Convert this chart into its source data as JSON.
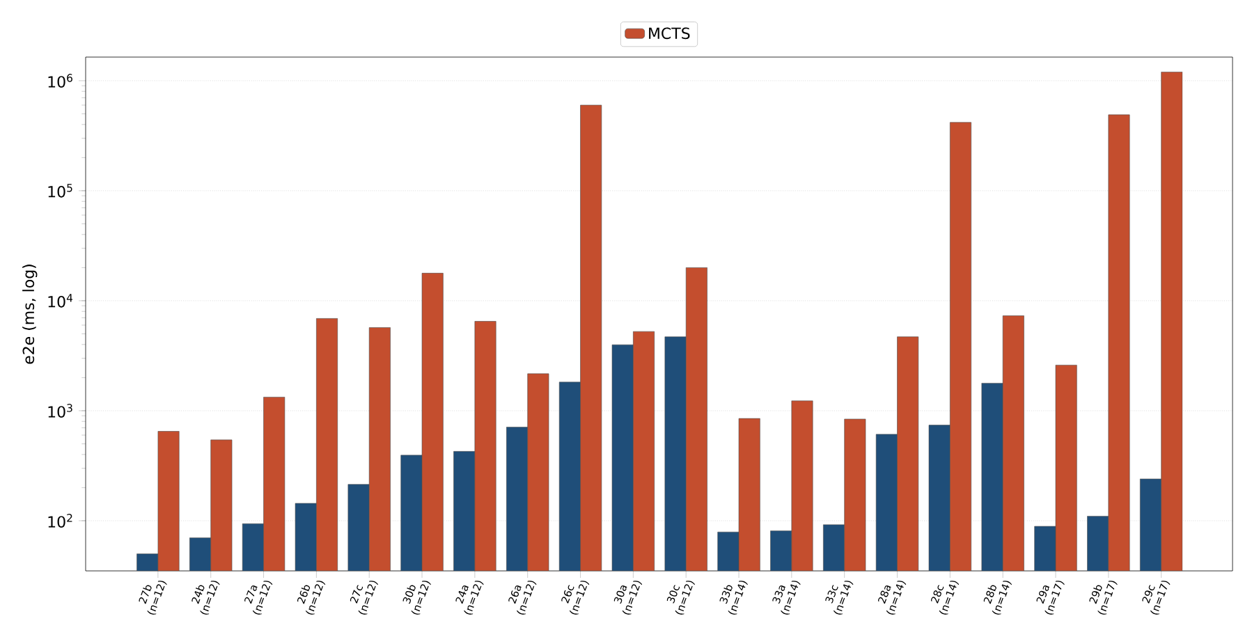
{
  "chart_data": {
    "type": "bar",
    "ylabel": "e2e (ms, log)",
    "log": "y",
    "grid": "y",
    "legend": "top",
    "categories": [
      "27b (n=12)",
      "24b (n=12)",
      "27a (n=12)",
      "26b (n=12)",
      "27c (n=12)",
      "30b (n=12)",
      "24a (n=12)",
      "26a (n=12)",
      "26c (n=12)",
      "30a (n=12)",
      "30c (n=12)",
      "33b (n=14)",
      "33a (n=14)",
      "33c (n=14)",
      "28a (n=14)",
      "28c (n=14)",
      "28b (n=14)",
      "29a (n=17)",
      "29b (n=17)",
      "29c (n=17)"
    ],
    "ylim": [
      35,
      1640000
    ],
    "yticks": [
      {
        "value": 100,
        "label": "10$^{2}$"
      },
      {
        "value": 1000,
        "label": "10$^{3}$"
      },
      {
        "value": 10000,
        "label": "10$^{4}$"
      },
      {
        "value": 100000,
        "label": "10$^{5}$"
      },
      {
        "value": 1000000,
        "label": "10$^{6}$"
      }
    ],
    "series": [
      {
        "color": "#1f4e79",
        "values": [
          50,
          70,
          94,
          144,
          214,
          394,
          427,
          710,
          1820,
          3980,
          4700,
          79,
          81,
          92,
          610,
          740,
          1780,
          89,
          110,
          240
        ]
      },
      {
        "name": "MCTS",
        "color": "#c44e2e",
        "values": [
          650,
          543,
          1330,
          6900,
          5700,
          17800,
          6500,
          2170,
          600000,
          5250,
          20000,
          850,
          1230,
          840,
          4700,
          418000,
          7300,
          2600,
          490000,
          1200000
        ]
      }
    ]
  }
}
